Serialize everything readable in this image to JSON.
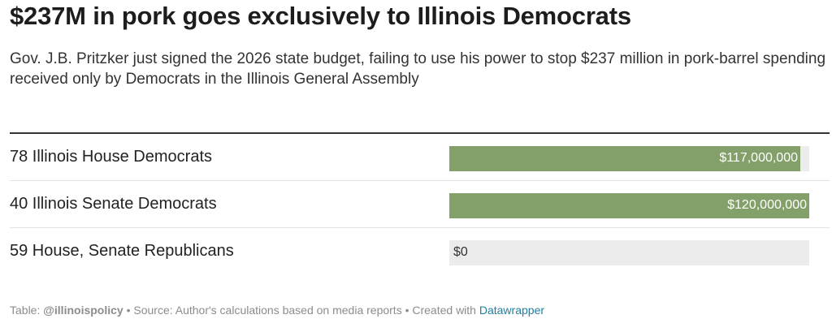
{
  "header": {
    "title": "$237M in pork goes exclusively to Illinois Democrats",
    "subtitle": "Gov. J.B. Pritzker just signed the 2026 state budget, failing to use his power to stop $237 million in pork-barrel spending received only by Democrats in the Illinois General Assembly"
  },
  "chart_data": {
    "type": "bar",
    "orientation": "horizontal",
    "categories": [
      "78 Illinois House Democrats",
      "40 Illinois Senate Democrats",
      "59 House, Senate Republicans"
    ],
    "values": [
      117000000,
      120000000,
      0
    ],
    "value_labels": [
      "$117,000,000",
      "$120,000,000",
      "$0"
    ],
    "xlim": [
      0,
      120000000
    ],
    "grid": false,
    "bar_color": "#83a06a",
    "track_color": "#ececec"
  },
  "footer": {
    "table_prefix": "Table: ",
    "credit": "@illinoispolicy",
    "source": " • Source: Author's calculations based on media reports • Created with ",
    "tool": "Datawrapper",
    "link_color": "#1d81a2"
  }
}
